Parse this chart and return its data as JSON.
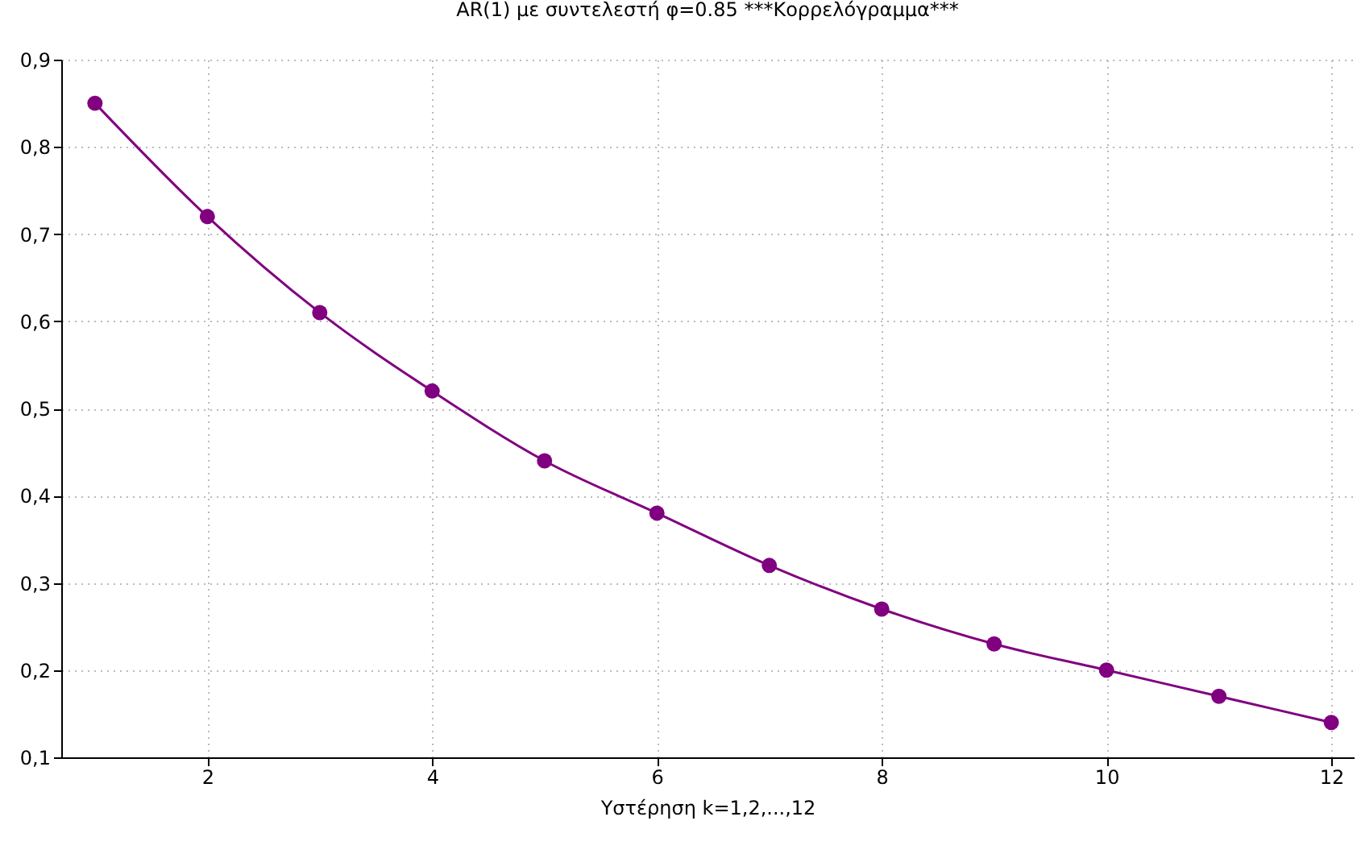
{
  "chart_data": {
    "type": "line",
    "title": "AR(1) με συντελεστή φ=0.85  ***Κορρελόγραμμα***",
    "xlabel": "Υστέρηση k=1,2,...,12",
    "x": [
      1,
      2,
      3,
      4,
      5,
      6,
      7,
      8,
      9,
      10,
      11,
      12
    ],
    "series": [
      {
        "color": "#800080",
        "values": [
          0.85,
          0.72,
          0.61,
          0.52,
          0.44,
          0.38,
          0.32,
          0.27,
          0.23,
          0.2,
          0.17,
          0.14
        ]
      }
    ],
    "xlim": [
      0.7,
      12.2
    ],
    "xticks": [
      2,
      4,
      6,
      8,
      10,
      12
    ],
    "ylim": [
      0.1,
      0.9
    ],
    "yticks": [
      {
        "value": 0.1,
        "label": "0,1"
      },
      {
        "value": 0.2,
        "label": "0,2"
      },
      {
        "value": 0.3,
        "label": "0,3"
      },
      {
        "value": 0.4,
        "label": "0,4"
      },
      {
        "value": 0.5,
        "label": "0,5"
      },
      {
        "value": 0.6,
        "label": "0,6"
      },
      {
        "value": 0.7,
        "label": "0,7"
      },
      {
        "value": 0.8,
        "label": "0,8"
      },
      {
        "value": 0.9,
        "label": "0,9"
      }
    ],
    "grid": true,
    "marker": "circle",
    "line_style": "solid"
  }
}
